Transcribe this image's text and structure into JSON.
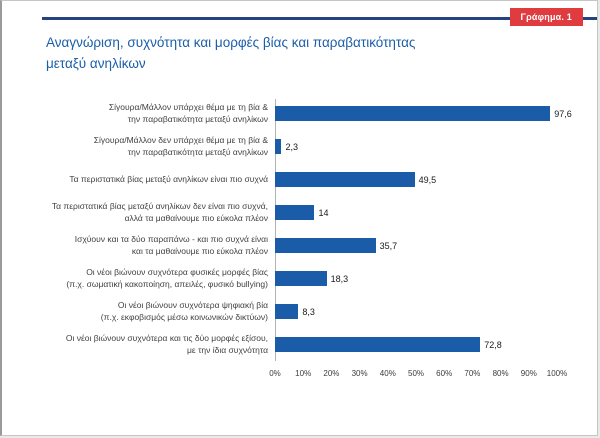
{
  "header": {
    "badge": "Γράφημα. 1",
    "title": "Αναγνώριση, συχνότητα και μορφές βίας και παραβατικότητας\nμεταξύ ανηλίκων"
  },
  "colors": {
    "bar": "#1A5CA8",
    "title_text": "#1B5EA9",
    "badge_bg": "#E03C40",
    "top_rule": "#24437F"
  },
  "chart_data": {
    "type": "bar",
    "orientation": "horizontal",
    "title": "Αναγνώριση, συχνότητα και μορφές βίας και παραβατικότητας μεταξύ ανηλίκων",
    "categories": [
      "Σίγουρα/Μάλλον υπάρχει θέμα με τη βία &\nτην παραβατικότητα μεταξύ ανηλίκων",
      "Σίγουρα/Μάλλον δεν υπάρχει θέμα με τη βία &\nτην παραβατικότητα μεταξύ ανηλίκων",
      "Τα περιστατικά βίας μεταξύ ανηλίκων είναι πιο συχνά",
      "Τα περιστατικά βίας μεταξύ ανηλίκων δεν είναι πιο συχνά,\nαλλά τα μαθαίνουμε πιο εύκολα πλέον",
      "Ισχύουν και τα δύο παραπάνω - και πιο συχνά είναι\nκαι τα μαθαίνουμε πιο εύκολα πλέον",
      "Οι νέοι βιώνουν συχνότερα φυσικές μορφές βίας\n(π.χ. σωματική κακοποίηση, απειλές, φυσικό bullying)",
      "Οι νέοι βιώνουν συχνότερα ψηφιακή βία\n(π.χ. εκφοβισμός μέσω κοινωνικών δικτύων)",
      "Οι νέοι βιώνουν συχνότερα και τις δύο μορφές εξίσου,\nμε την ίδια συχνότητα"
    ],
    "values": [
      97.6,
      2.3,
      49.5,
      14,
      35.7,
      18.3,
      8.3,
      72.8
    ],
    "value_labels": [
      "97,6",
      "2,3",
      "49,5",
      "14",
      "35,7",
      "18,3",
      "8,3",
      "72,8"
    ],
    "x_ticks": [
      "0%",
      "10%",
      "20%",
      "30%",
      "40%",
      "50%",
      "60%",
      "70%",
      "80%",
      "90%",
      "100%"
    ],
    "xlim": [
      0,
      100
    ],
    "grid": false,
    "legend": "none",
    "bar_color": "#1A5CA8"
  }
}
